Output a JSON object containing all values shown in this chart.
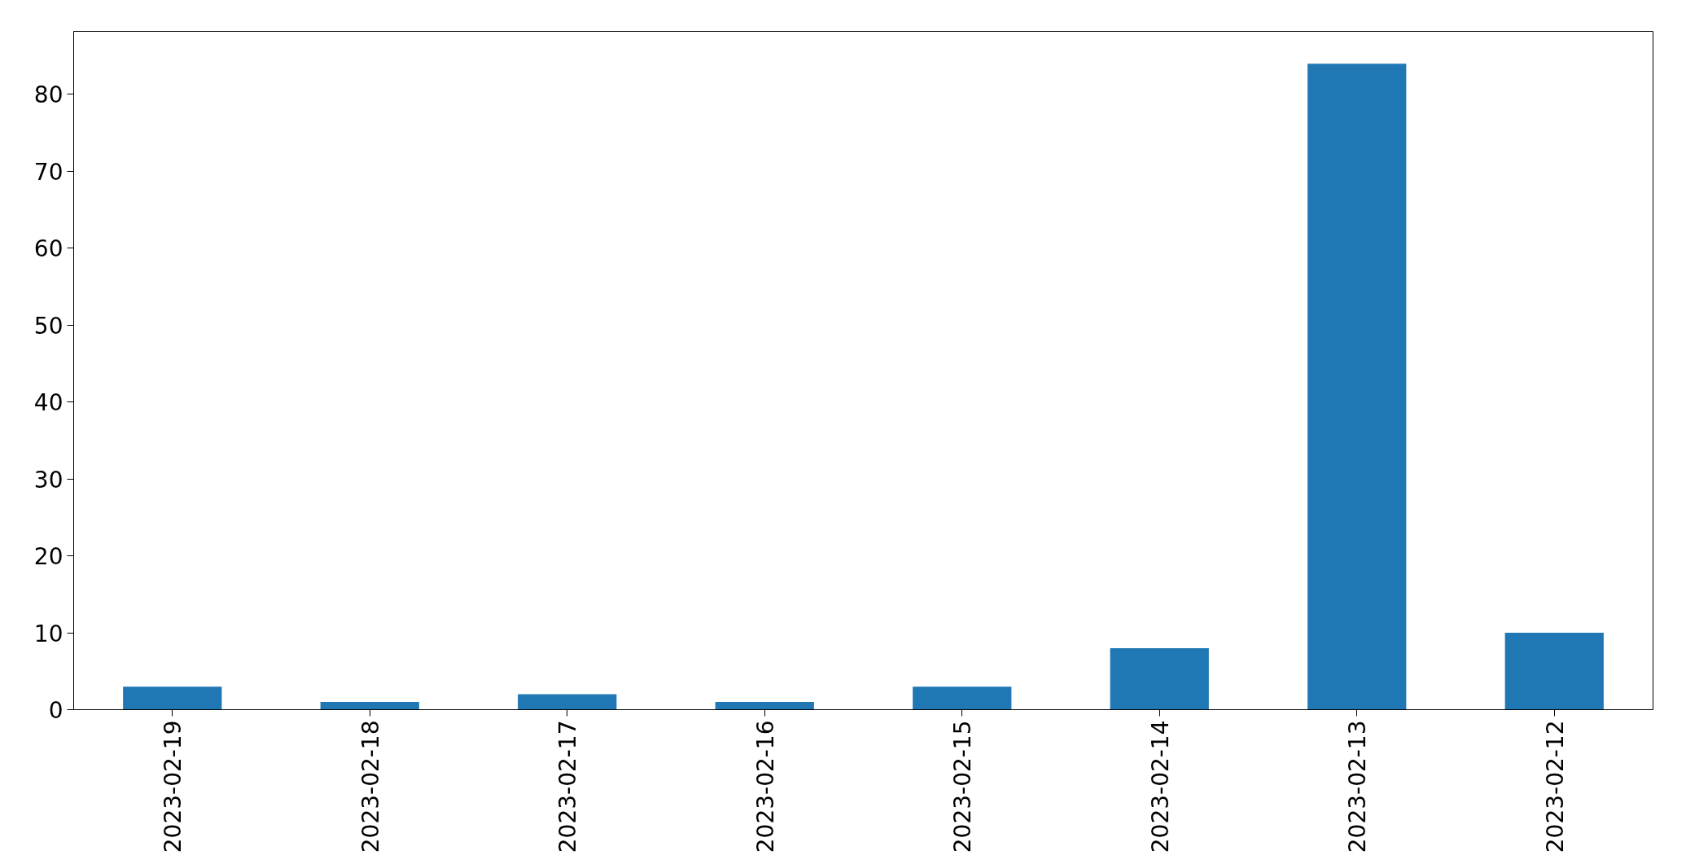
{
  "chart_data": {
    "type": "bar",
    "categories": [
      "2023-02-19",
      "2023-02-18",
      "2023-02-17",
      "2023-02-16",
      "2023-02-15",
      "2023-02-14",
      "2023-02-13",
      "2023-02-12"
    ],
    "values": [
      3,
      1,
      2,
      1,
      3,
      8,
      84,
      10
    ],
    "color": "#1f77b4",
    "ylim": [
      0,
      88.2
    ],
    "yticks": [
      0,
      10,
      20,
      30,
      40,
      50,
      60,
      70,
      80
    ]
  }
}
